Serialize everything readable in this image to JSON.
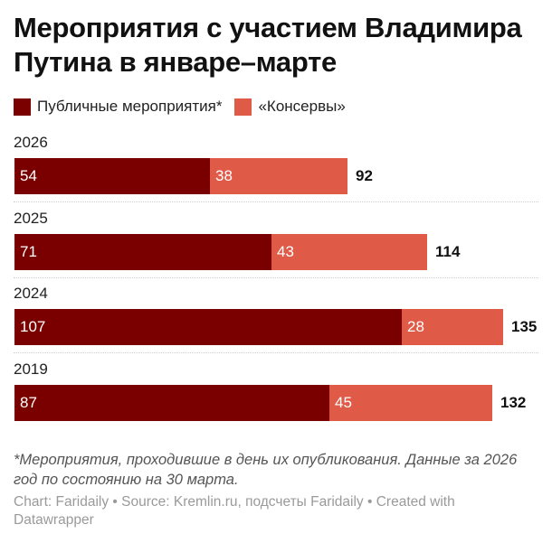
{
  "title": "Мероприятия с участием Владимира Путина в январе–марте",
  "legend": [
    {
      "label": "Публичные мероприятия*",
      "color": "#7a0000"
    },
    {
      "label": "«Консервы»",
      "color": "#e05a48"
    }
  ],
  "note": "*Мероприятия, проходившие в день их опубликования. Данные за 2026 год по состоянию на 30 марта.",
  "credits": "Chart: Faridaily • Source: Kremlin.ru, подсчеты Faridaily • Created with Datawrapper",
  "chart_data": {
    "type": "bar",
    "orientation": "horizontal",
    "stacked": true,
    "title": "Мероприятия с участием Владимира Путина в январе–марте",
    "categories": [
      "2026",
      "2025",
      "2024",
      "2019"
    ],
    "series": [
      {
        "name": "Публичные мероприятия*",
        "color": "#7a0000",
        "values": [
          54,
          71,
          107,
          87
        ]
      },
      {
        "name": "«Консервы»",
        "color": "#e05a48",
        "values": [
          38,
          43,
          28,
          45
        ]
      }
    ],
    "totals": [
      92,
      114,
      135,
      132
    ],
    "xlabel": "",
    "ylabel": "",
    "xlim": [
      0,
      135
    ],
    "grid": false,
    "legend_position": "top-left"
  }
}
